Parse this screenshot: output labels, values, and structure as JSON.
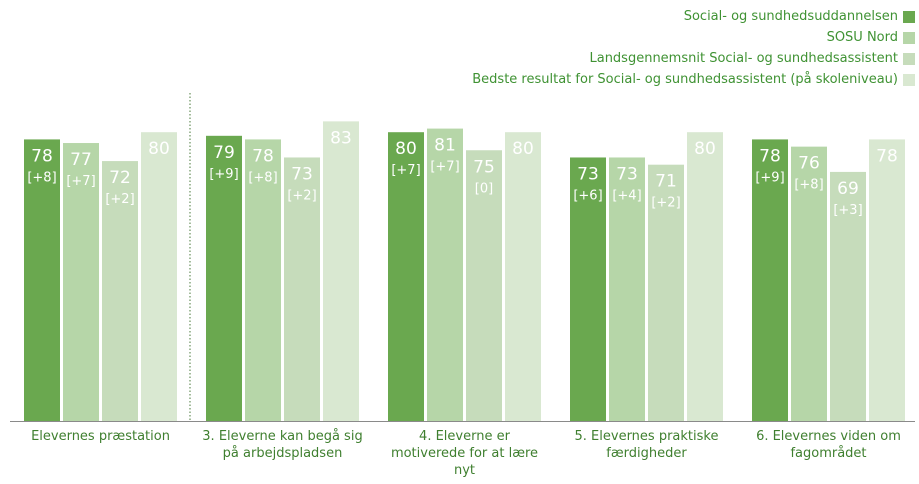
{
  "chart_data": {
    "type": "bar",
    "categories": [
      "Elevernes præstation",
      "3. Eleverne kan begå sig på arbejdspladsen",
      "4. Eleverne er motiverede for at lære nyt",
      "5. Elevernes praktiske færdigheder",
      "6. Elevernes viden om fagområdet"
    ],
    "category_lines": [
      [
        "Elevernes præstation"
      ],
      [
        "3. Eleverne kan begå sig",
        "på arbejdspladsen"
      ],
      [
        "4. Eleverne er",
        "motiverede for at lære",
        "nyt"
      ],
      [
        "5. Elevernes praktiske",
        "færdigheder"
      ],
      [
        "6. Elevernes viden om",
        "fagområdet"
      ]
    ],
    "series": [
      {
        "name": "Social- og sundhedsuddannelsen",
        "color": "#6aa84f",
        "values": [
          78,
          79,
          80,
          73,
          78
        ],
        "changes": [
          "[+8]",
          "[+9]",
          "[+7]",
          "[+6]",
          "[+9]"
        ]
      },
      {
        "name": "SOSU Nord",
        "color": "#b6d6a8",
        "values": [
          77,
          78,
          81,
          73,
          76
        ],
        "changes": [
          "[+7]",
          "[+8]",
          "[+7]",
          "[+4]",
          "[+8]"
        ]
      },
      {
        "name": "Landsgennemsnit Social- og sundhedsassistent",
        "color": "#c6dcbb",
        "values": [
          72,
          73,
          75,
          71,
          69
        ],
        "changes": [
          "[+2]",
          "[+2]",
          "[0]",
          "[+2]",
          "[+3]"
        ]
      },
      {
        "name": "Bedste resultat for Social- og sundhedsassistent (på skoleniveau)",
        "color": "#d9e8d1",
        "values": [
          80,
          83,
          80,
          80,
          78
        ],
        "changes": [
          "",
          "",
          "",
          "",
          ""
        ]
      }
    ],
    "ylim": [
      0,
      100
    ],
    "separator_after_category": 0
  }
}
